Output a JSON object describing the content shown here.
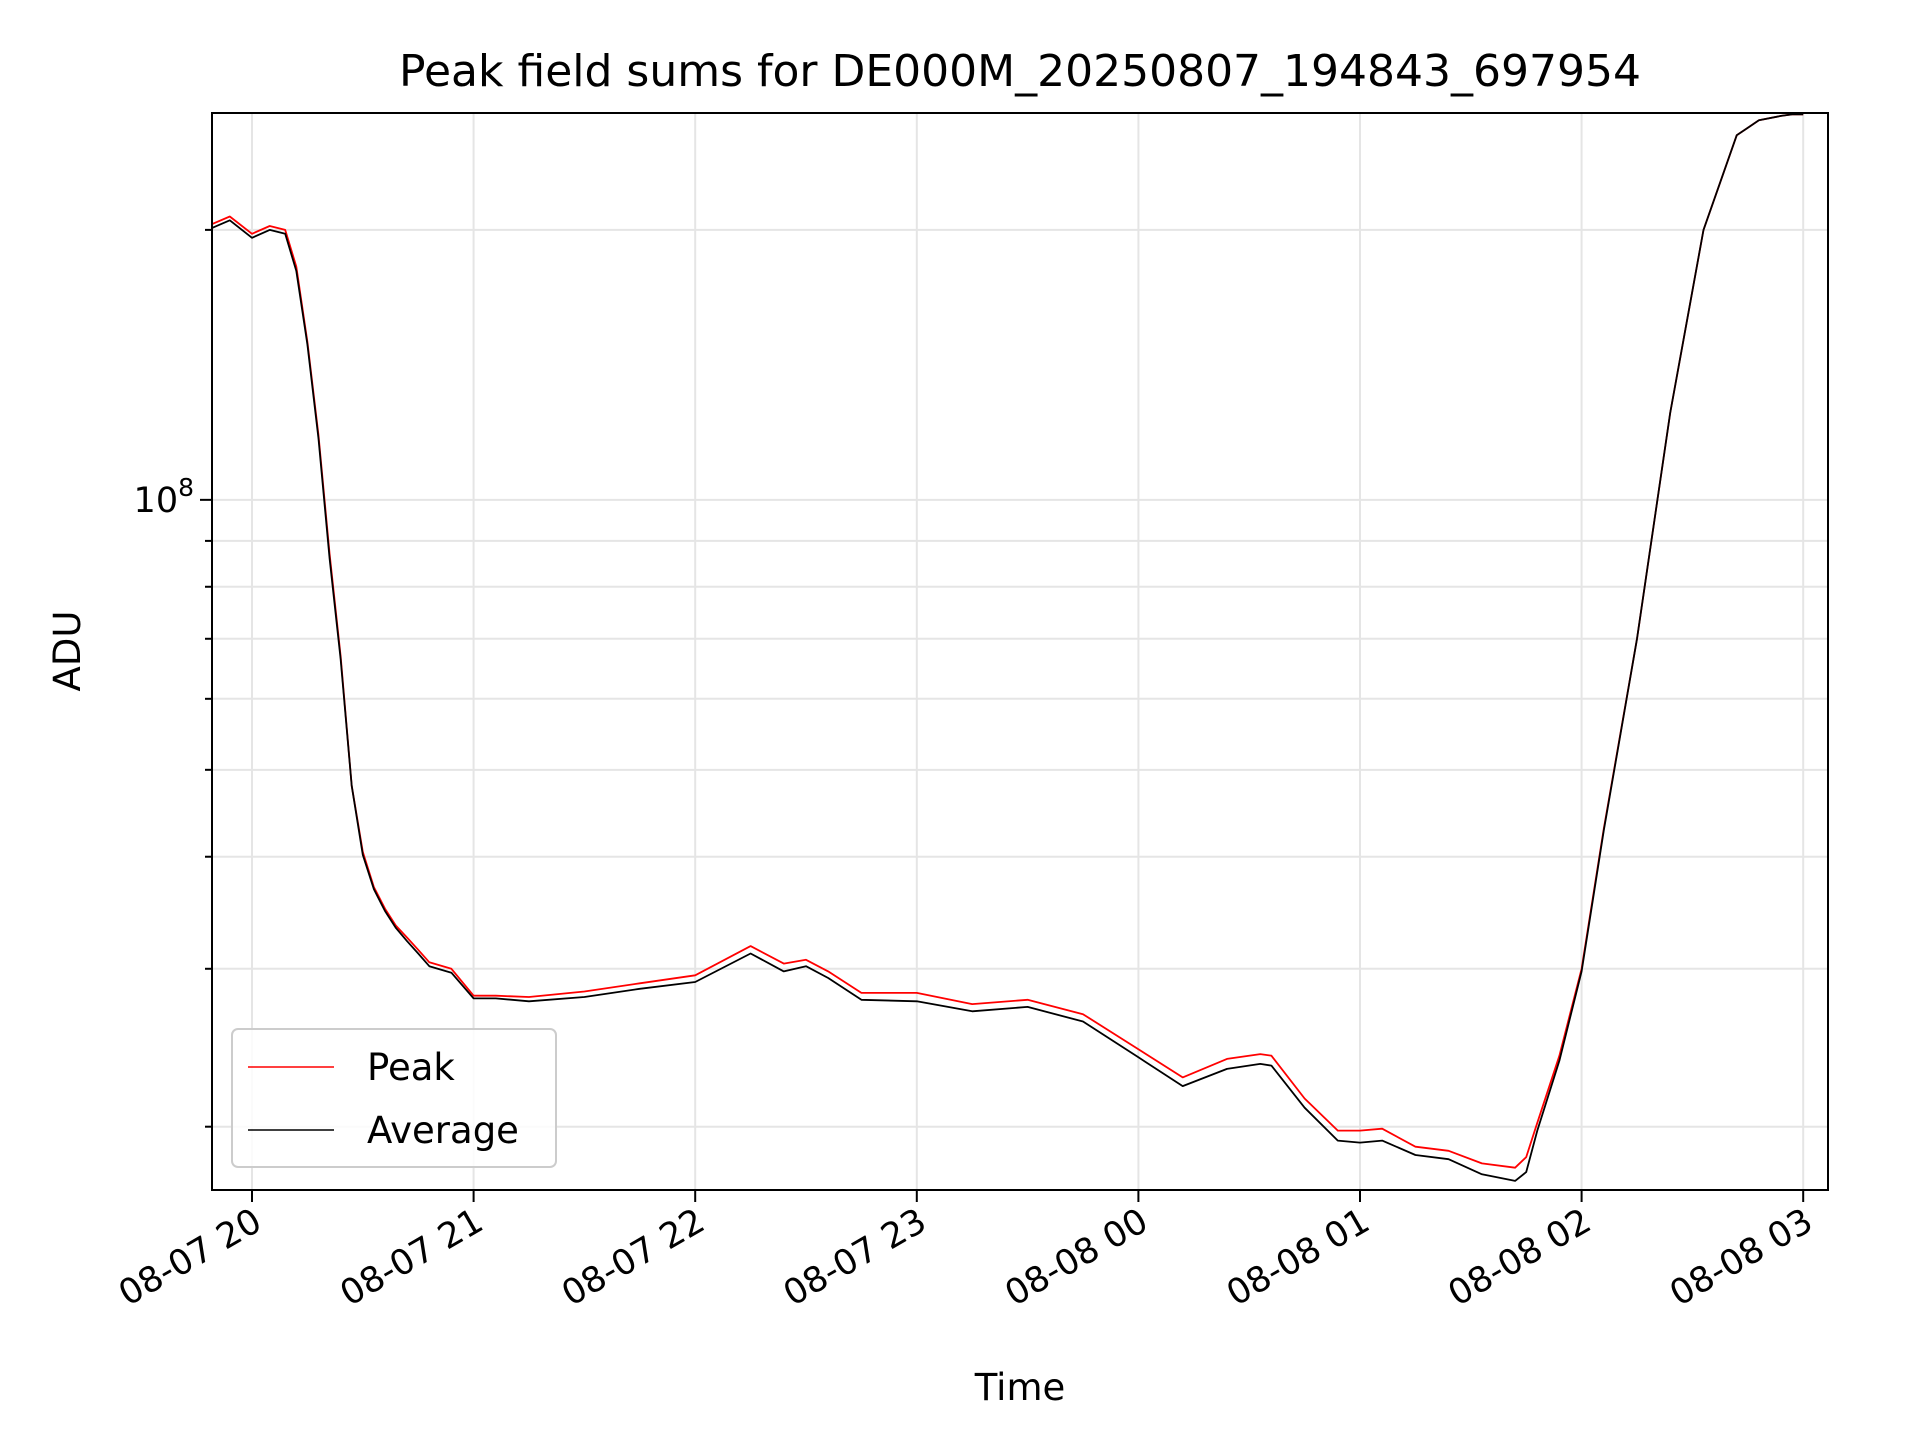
{
  "chart_data": {
    "type": "line",
    "title": "Peak field sums for DE000M_20250807_194843_697954",
    "xlabel": "Time",
    "ylabel": "ADU",
    "y_scale": "log",
    "ylim": [
      17000000,
      270000000
    ],
    "y_tick_labels": [
      {
        "value": 100000000,
        "base": "10",
        "exp": "8"
      }
    ],
    "x_tick_labels": [
      "08-07 20",
      "08-07 21",
      "08-07 22",
      "08-07 23",
      "08-08 00",
      "08-08 01",
      "08-08 02",
      "08-08 03"
    ],
    "grid": true,
    "legend_position": "lower-left",
    "x_hours": [
      -0.18,
      -0.1,
      0.0,
      0.08,
      0.15,
      0.2,
      0.25,
      0.3,
      0.35,
      0.4,
      0.45,
      0.5,
      0.55,
      0.6,
      0.65,
      0.7,
      0.75,
      0.8,
      0.9,
      1.0,
      1.1,
      1.25,
      1.5,
      1.75,
      2.0,
      2.25,
      2.4,
      2.5,
      2.6,
      2.75,
      3.0,
      3.25,
      3.5,
      3.75,
      4.0,
      4.2,
      4.4,
      4.55,
      4.6,
      4.75,
      4.9,
      5.0,
      5.1,
      5.25,
      5.4,
      5.55,
      5.7,
      5.75,
      5.8,
      5.9,
      6.0,
      6.1,
      6.25,
      6.4,
      6.55,
      6.7,
      6.8,
      6.9,
      6.95,
      7.0
    ],
    "series": [
      {
        "name": "Peak",
        "color": "#ff0000",
        "values": [
          203000000,
          207000000,
          198000000,
          202000000,
          200000000,
          182000000,
          150000000,
          118000000,
          87000000,
          67000000,
          48000000,
          40500000,
          37000000,
          35000000,
          33500000,
          32500000,
          31500000,
          30500000,
          30000000,
          28000000,
          28000000,
          27900000,
          28300000,
          28900000,
          29500000,
          31800000,
          30400000,
          30700000,
          29800000,
          28200000,
          28200000,
          27400000,
          27700000,
          26700000,
          24400000,
          22700000,
          23800000,
          24100000,
          24000000,
          21500000,
          19800000,
          19800000,
          19900000,
          19000000,
          18800000,
          18200000,
          18000000,
          18500000,
          20200000,
          24000000,
          30000000,
          43000000,
          70000000,
          125000000,
          200000000,
          255000000,
          265000000,
          268000000,
          269000000,
          269000000
        ]
      },
      {
        "name": "Average",
        "color": "#000000",
        "values": [
          201000000,
          205000000,
          196000000,
          200000000,
          198000000,
          180000000,
          149000000,
          117000000,
          86000000,
          66500000,
          48000000,
          40200000,
          36800000,
          34800000,
          33300000,
          32200000,
          31200000,
          30200000,
          29700000,
          27800000,
          27800000,
          27600000,
          27900000,
          28500000,
          29000000,
          31200000,
          29800000,
          30200000,
          29300000,
          27700000,
          27600000,
          26900000,
          27200000,
          26200000,
          23900000,
          22200000,
          23200000,
          23500000,
          23400000,
          21000000,
          19300000,
          19200000,
          19300000,
          18600000,
          18400000,
          17700000,
          17400000,
          17800000,
          19800000,
          23700000,
          29800000,
          42800000,
          70000000,
          125000000,
          200000000,
          255000000,
          265000000,
          268000000,
          269000000,
          269000000
        ]
      }
    ]
  }
}
